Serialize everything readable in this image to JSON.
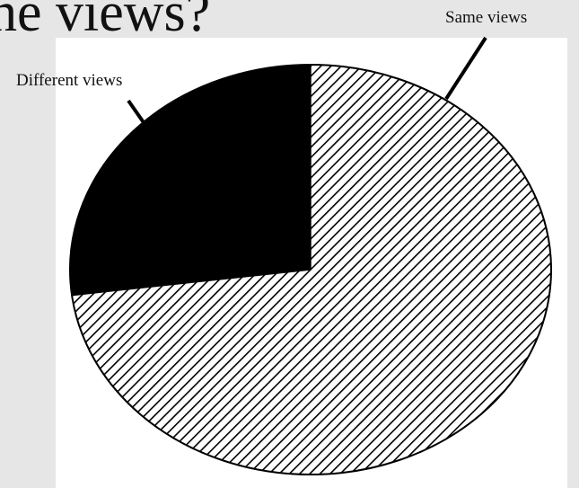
{
  "heading": "he views?",
  "chart_data": {
    "type": "pie",
    "title": "",
    "slices": [
      {
        "label": "Different views",
        "value": 27,
        "fill": "#000000",
        "pattern": "solid"
      },
      {
        "label": "Same views",
        "value": 73,
        "fill": "#ffffff",
        "pattern": "diagonal-hatch"
      }
    ],
    "legend": "callout labels"
  },
  "colors": {
    "background": "#e6e6e6",
    "panel": "#ffffff",
    "ink": "#111111"
  }
}
